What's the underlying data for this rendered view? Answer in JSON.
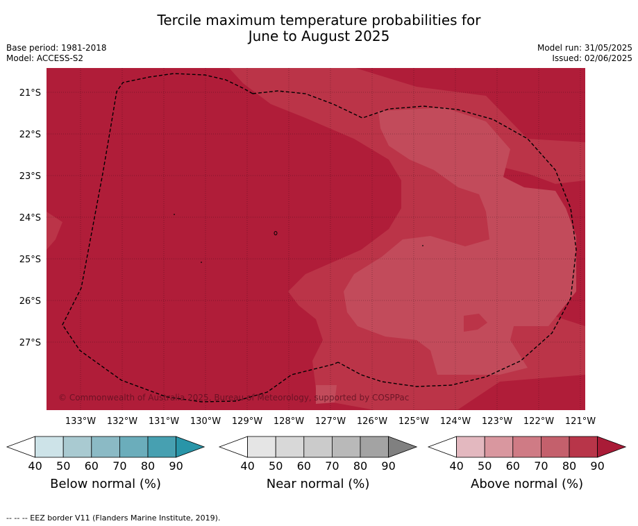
{
  "title_line1": "Tercile maximum temperature probabilities for",
  "title_line2": "June to August 2025",
  "base_period": "Base period: 1981-2018",
  "model": "Model: ACCESS-S2",
  "model_run": "Model run: 31/05/2025",
  "issued": "Issued: 02/06/2025",
  "copyright": "© Commonwealth of Australia 2025, Bureau of Meteorology, supported by COSPPac",
  "lat_labels": [
    "21°S",
    "22°S",
    "23°S",
    "24°S",
    "25°S",
    "26°S",
    "27°S"
  ],
  "lon_labels": [
    "133°W",
    "132°W",
    "131°W",
    "130°W",
    "129°W",
    "128°W",
    "127°W",
    "126°W",
    "125°W",
    "124°W",
    "123°W",
    "122°W",
    "121°W"
  ],
  "colorbars": [
    {
      "title": "Below normal (%)",
      "ticks": [
        "40",
        "50",
        "60",
        "70",
        "80",
        "90"
      ],
      "colors": [
        "#ffffff",
        "#cde3e8",
        "#a9cad1",
        "#8bbac5",
        "#6badbb",
        "#47a0b1",
        "#2995a8"
      ]
    },
    {
      "title": "Near normal (%)",
      "ticks": [
        "40",
        "50",
        "60",
        "70",
        "80",
        "90"
      ],
      "colors": [
        "#ffffff",
        "#e5e5e5",
        "#d8d8d8",
        "#cbcbcb",
        "#b9b9b9",
        "#a3a3a3",
        "#808080"
      ]
    },
    {
      "title": "Above normal (%)",
      "ticks": [
        "40",
        "50",
        "60",
        "70",
        "80",
        "90"
      ],
      "colors": [
        "#ffffff",
        "#e3b8bf",
        "#d9979f",
        "#cf7b85",
        "#c4606c",
        "#b83549",
        "#a91b37"
      ]
    }
  ],
  "footer": "--  --  -- EEZ border V11 (Flanders Marine Institute, 2019).",
  "map_colors": {
    "above_80_90": "#b01d39",
    "above_70_80": "#bb3448",
    "above_60_70": "#c24b5b"
  }
}
